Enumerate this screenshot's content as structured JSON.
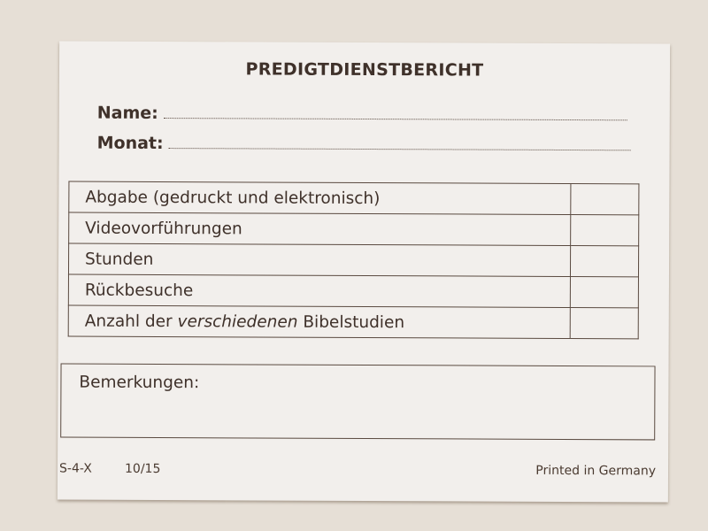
{
  "form": {
    "title": "PREDIGTDIENSTBERICHT",
    "fields": [
      {
        "label": "Name:",
        "value": ""
      },
      {
        "label": "Monat:",
        "value": ""
      }
    ],
    "rows": [
      {
        "label": "Abgabe (gedruckt und elektronisch)",
        "value": ""
      },
      {
        "label": "Videovorführungen",
        "value": ""
      },
      {
        "label": "Stunden",
        "value": ""
      },
      {
        "label": "Rückbesuche",
        "value": ""
      },
      {
        "label_pre": "Anzahl der ",
        "label_em": "verschiedenen",
        "label_post": " Bibelstudien",
        "value": ""
      }
    ],
    "remarks_label": "Bemerkungen:",
    "footer": {
      "code": "S-4-X",
      "date": "10/15",
      "printed": "Printed in Germany"
    }
  },
  "colors": {
    "background": "#e6dfd6",
    "paper": "#f2efec",
    "ink": "#3f312a"
  }
}
